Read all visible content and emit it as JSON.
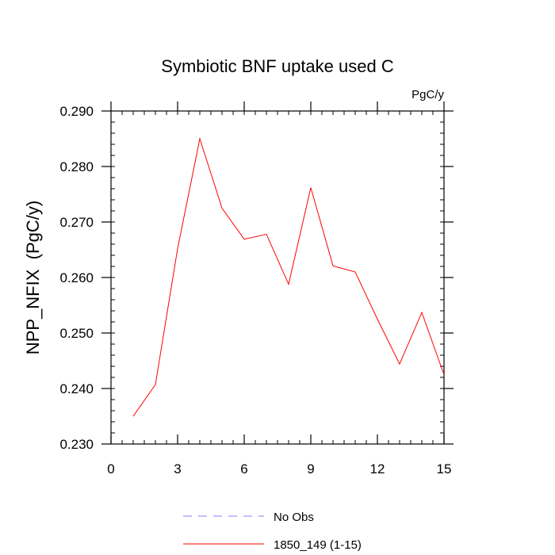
{
  "chart_data": {
    "type": "line",
    "title": "Symbiotic BNF uptake used C",
    "units_label": "PgC/y",
    "ylabel": "NPP_NFIX  (PgC/y)",
    "xlabel": "",
    "xlim": [
      0,
      15
    ],
    "ylim": [
      0.23,
      0.29
    ],
    "x_ticks": [
      0,
      3,
      6,
      9,
      12,
      15
    ],
    "x_tick_labels": [
      "0",
      "3",
      "6",
      "9",
      "12",
      "15"
    ],
    "y_ticks": [
      0.23,
      0.24,
      0.25,
      0.26,
      0.27,
      0.28,
      0.29
    ],
    "y_tick_labels": [
      "0.230",
      "0.240",
      "0.250",
      "0.260",
      "0.270",
      "0.280",
      "0.290"
    ],
    "grid": false,
    "legend_placement": "bottom",
    "series": [
      {
        "name": "1850_149 (1-15)",
        "color": "#ff0000",
        "dash": "solid",
        "x": [
          1,
          2,
          3,
          4,
          5,
          6,
          7,
          8,
          9,
          10,
          11,
          12,
          13,
          14,
          15
        ],
        "y": [
          0.235,
          0.2407,
          0.2652,
          0.285,
          0.2725,
          0.2669,
          0.2678,
          0.2588,
          0.2762,
          0.2621,
          0.261,
          0.2525,
          0.2444,
          0.2537,
          0.2425
        ]
      }
    ],
    "legend": [
      {
        "label": "No Obs",
        "color": "#8080ff",
        "dash": "dashed"
      },
      {
        "label": "1850_149 (1-15)",
        "color": "#ff0000",
        "dash": "solid"
      }
    ]
  }
}
